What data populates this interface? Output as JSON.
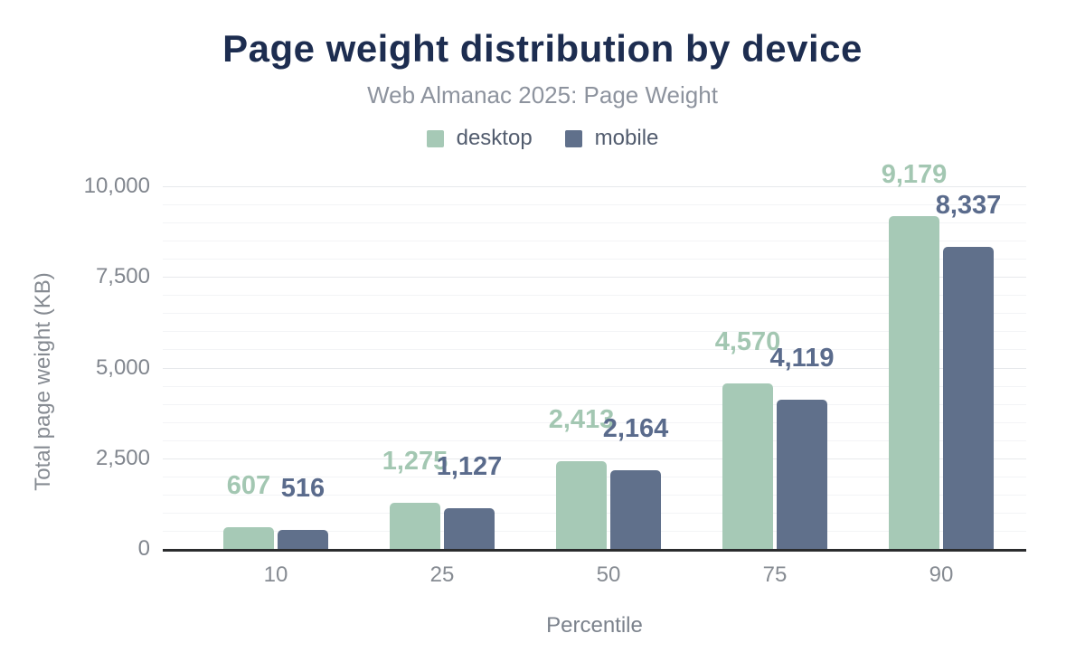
{
  "chart": {
    "title": "Page weight distribution by device",
    "subtitle": "Web Almanac 2025: Page Weight",
    "xlabel": "Percentile",
    "ylabel": "Total page weight (KB)"
  },
  "colors": {
    "title": "#1d2d50",
    "subtitle": "#8d939e",
    "desktop": "#a6c9b6",
    "mobile": "#60708b",
    "desktop_label": "#a3c7b2",
    "mobile_label": "#5a6b8c",
    "axis_line": "#2b2c2e",
    "tick_text": "#81868e"
  },
  "chart_data": {
    "type": "bar",
    "title": "Page weight distribution by device",
    "subtitle": "Web Almanac 2025: Page Weight",
    "xlabel": "Percentile",
    "ylabel": "Total page weight (KB)",
    "categories": [
      "10",
      "25",
      "50",
      "75",
      "90"
    ],
    "series": [
      {
        "name": "desktop",
        "color": "#a6c9b6",
        "label_color": "#a3c7b2",
        "values": [
          607,
          1275,
          2413,
          4570,
          9179
        ],
        "value_labels": [
          "607",
          "1,275",
          "2,413",
          "4,570",
          "9,179"
        ]
      },
      {
        "name": "mobile",
        "color": "#60708b",
        "label_color": "#5a6b8c",
        "values": [
          516,
          1127,
          2164,
          4119,
          8337
        ],
        "value_labels": [
          "516",
          "1,127",
          "2,164",
          "4,119",
          "8,337"
        ]
      }
    ],
    "ylim": [
      0,
      10500
    ],
    "yticks": [
      0,
      2500,
      5000,
      7500,
      10000
    ],
    "ytick_labels": [
      "0",
      "2,500",
      "5,000",
      "7,500",
      "10,000"
    ],
    "minor_grid_step": 500,
    "grid": "on",
    "legend_position": "top"
  }
}
